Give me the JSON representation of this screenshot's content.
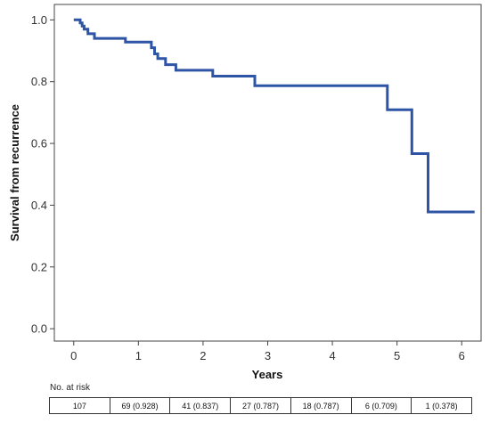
{
  "chart_data": {
    "type": "line",
    "title": "",
    "xlabel": "Years",
    "ylabel": "Survival from recurrence",
    "xlim": [
      -0.3,
      6.3
    ],
    "ylim": [
      -0.04,
      1.05
    ],
    "x_ticks": [
      "0",
      "1",
      "2",
      "3",
      "4",
      "5",
      "6"
    ],
    "y_ticks": [
      "0.0",
      "0.2",
      "0.4",
      "0.6",
      "0.8",
      "1.0"
    ],
    "grid": false,
    "series": [
      {
        "color": "#2e55a5",
        "step": true,
        "x": [
          0,
          0.1,
          0.13,
          0.16,
          0.22,
          0.32,
          0.8,
          1.2,
          1.25,
          1.3,
          1.42,
          1.58,
          2.15,
          2.8,
          4.85,
          5.23,
          5.48,
          6.2
        ],
        "y": [
          1.0,
          0.99,
          0.98,
          0.97,
          0.955,
          0.94,
          0.928,
          0.91,
          0.89,
          0.875,
          0.855,
          0.837,
          0.818,
          0.787,
          0.709,
          0.567,
          0.378,
          0.378
        ]
      }
    ]
  },
  "risk_table": {
    "title": "No. at risk",
    "cells": [
      "107",
      "69 (0.928)",
      "41 (0.837)",
      "27 (0.787)",
      "18 (0.787)",
      "6 (0.709)",
      "1 (0.378)"
    ]
  }
}
